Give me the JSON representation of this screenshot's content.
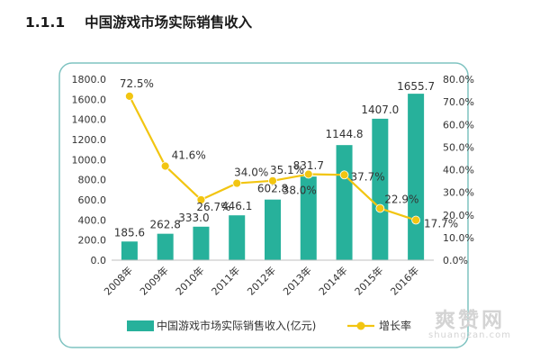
{
  "section": {
    "number": "1.1.1",
    "title": "中国游戏市场实际销售收入"
  },
  "chart_data": {
    "type": "bar+line",
    "categories": [
      "2008年",
      "2009年",
      "2010年",
      "2011年",
      "2012年",
      "2013年",
      "2014年",
      "2015年",
      "2016年"
    ],
    "series": [
      {
        "name": "中国游戏市场实际销售收入(亿元)",
        "kind": "bar",
        "axis": "left",
        "color": "#27b19b",
        "values": [
          185.6,
          262.8,
          333.0,
          446.1,
          602.8,
          831.7,
          1144.8,
          1407.0,
          1655.7
        ],
        "labels": [
          "185.6",
          "262.8",
          "333.0",
          "446.1",
          "602.8",
          "831.7",
          "1144.8",
          "1407.0",
          "1655.7"
        ]
      },
      {
        "name": "增长率",
        "kind": "line",
        "axis": "right",
        "color": "#f2c511",
        "values": [
          72.5,
          41.6,
          26.7,
          34.0,
          35.1,
          38.0,
          37.7,
          22.9,
          17.7
        ],
        "labels": [
          "72.5%",
          "41.6%",
          "26.7%",
          "34.0%",
          "35.1%",
          "38.0%",
          "37.7%",
          "22.9%",
          "17.7%"
        ]
      }
    ],
    "y_left": {
      "min": 0,
      "max": 1800,
      "step": 200,
      "ticks": [
        "0.0",
        "200.0",
        "400.0",
        "600.0",
        "800.0",
        "1000.0",
        "1200.0",
        "1400.0",
        "1600.0",
        "1800.0"
      ]
    },
    "y_right": {
      "min": 0,
      "max": 80,
      "step": 10,
      "ticks": [
        "0.0%",
        "10.0%",
        "20.0%",
        "30.0%",
        "40.0%",
        "50.0%",
        "60.0%",
        "70.0%",
        "80.0%"
      ]
    },
    "grid": false,
    "legend_position": "bottom",
    "colors": {
      "frame": "#7fc3c1",
      "axis": "#bfbfbf",
      "text": "#333333"
    }
  },
  "watermark": {
    "cn": "爽赞网",
    "en": "shuangzan.com"
  }
}
